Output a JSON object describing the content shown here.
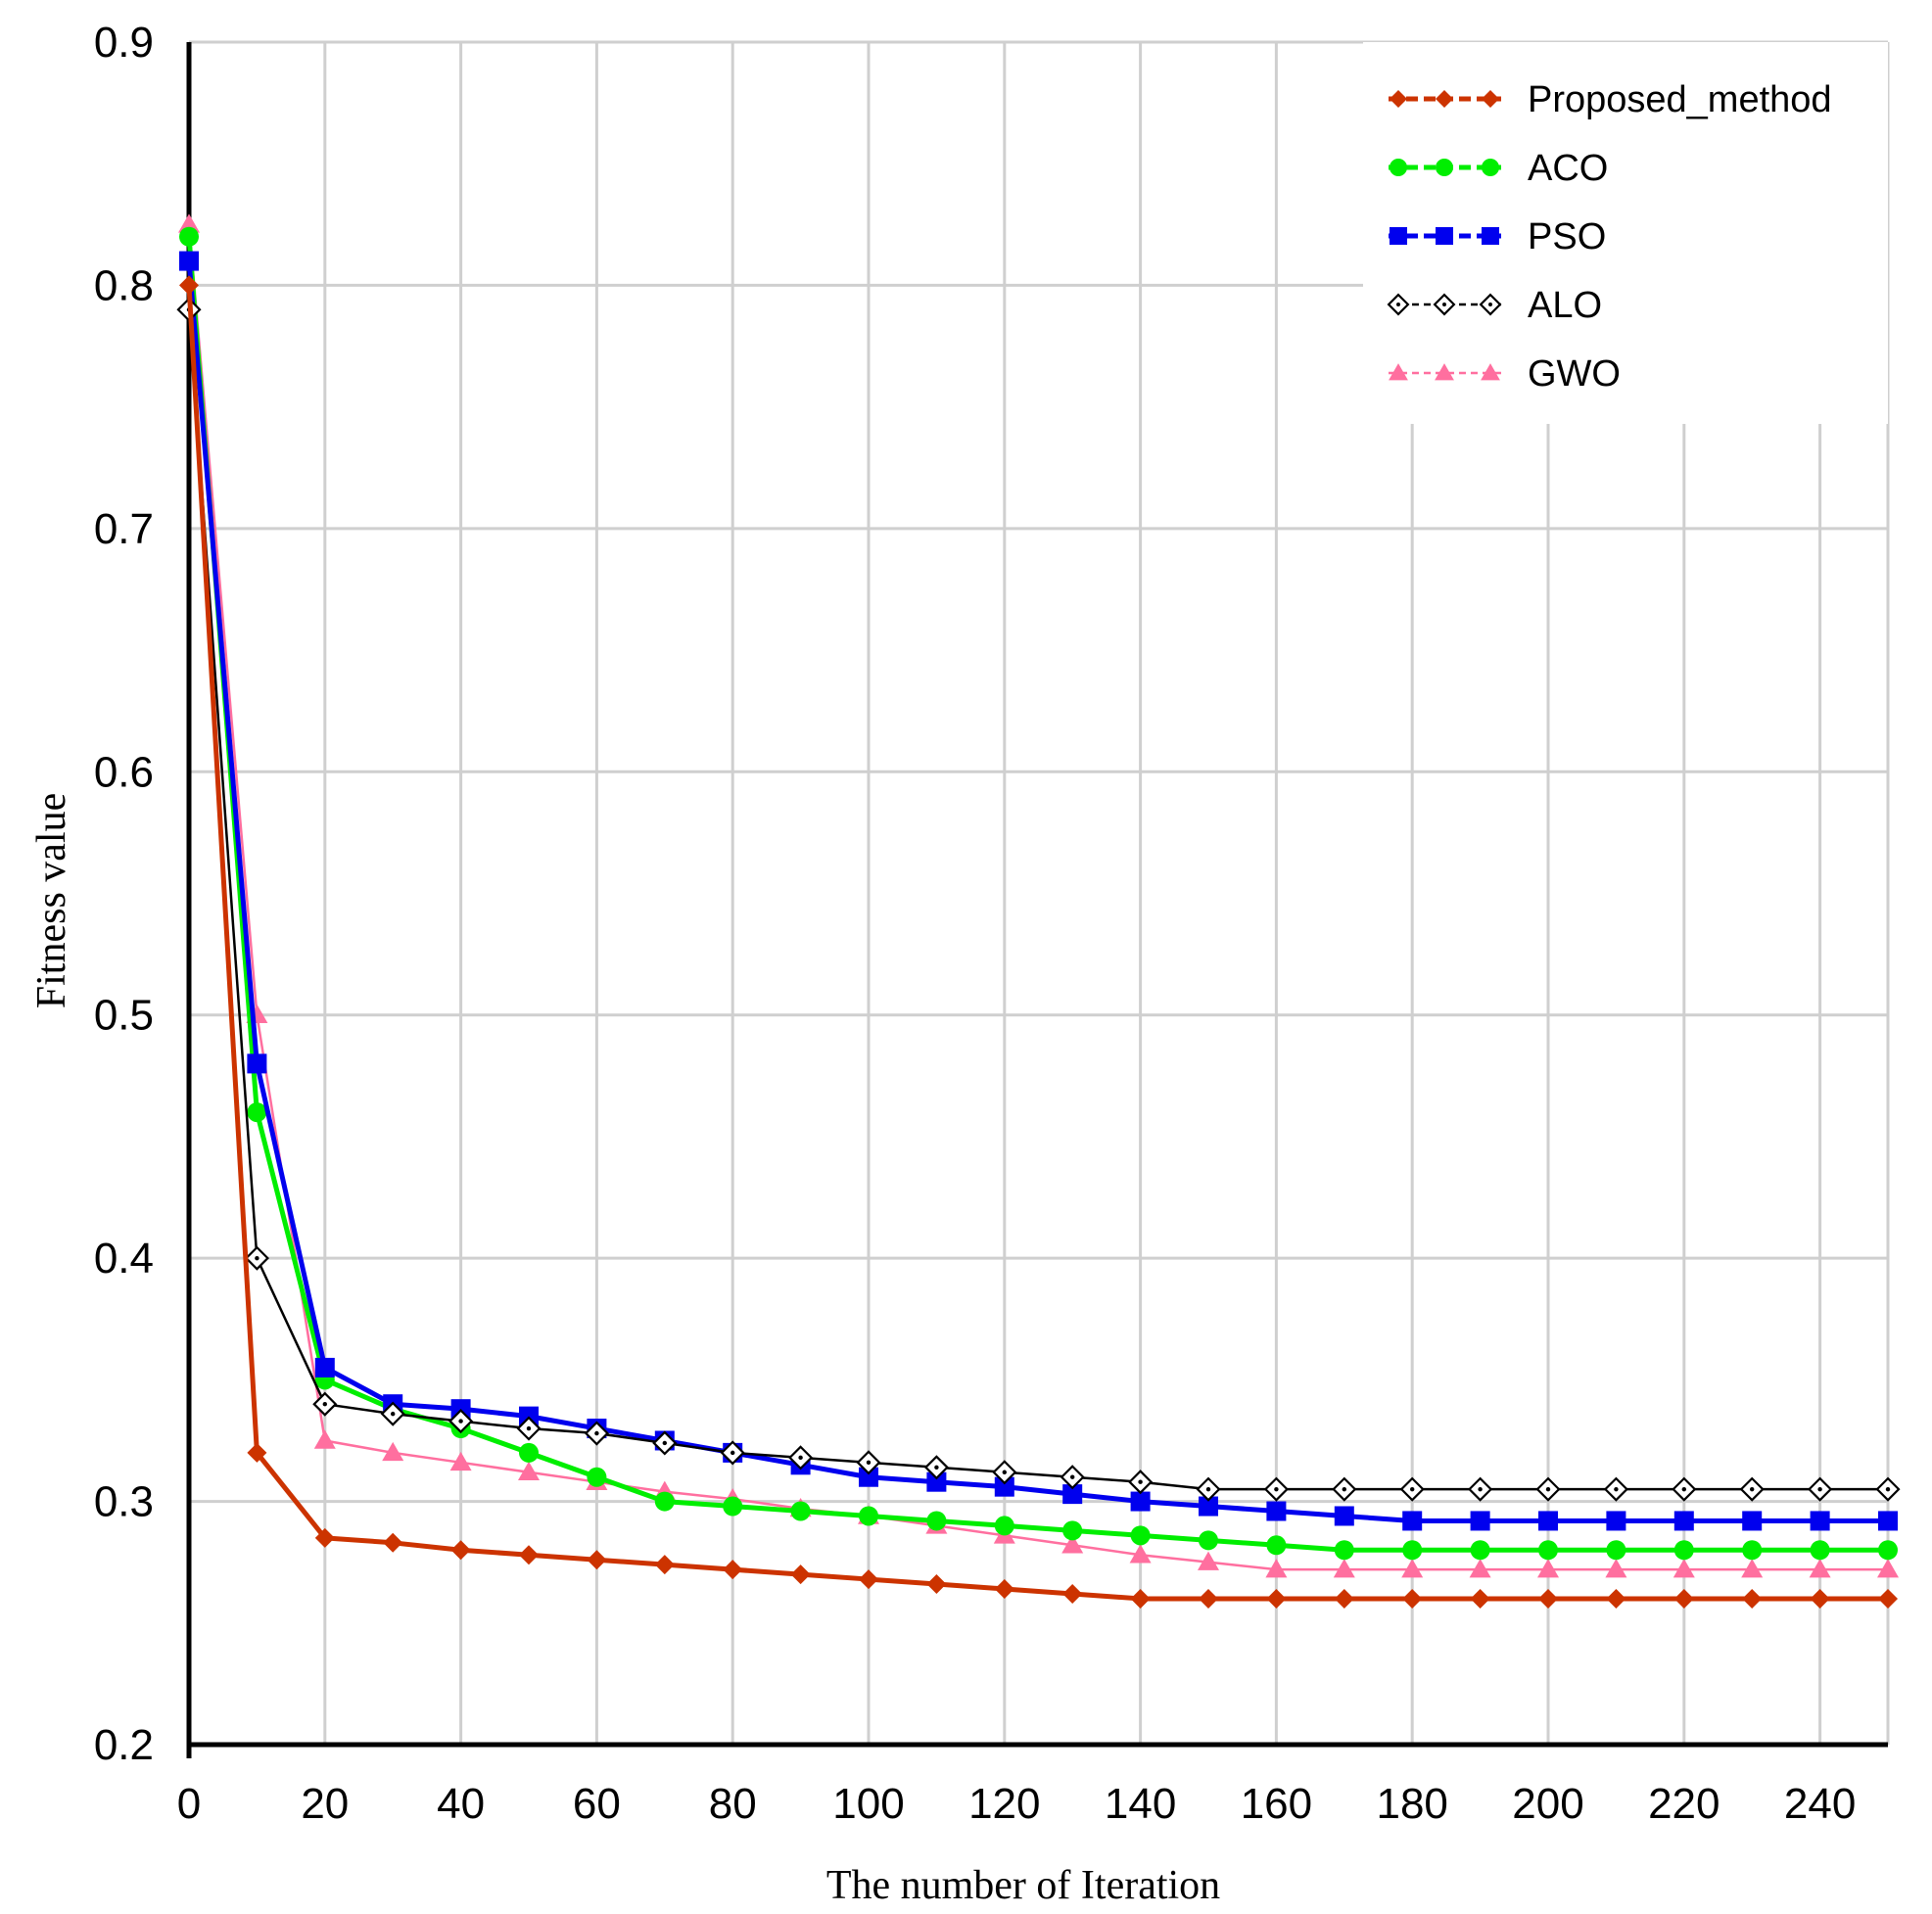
{
  "chart_data": {
    "type": "line",
    "title": "",
    "xlabel": "The number of Iteration",
    "ylabel": "Fitness value",
    "xlim": [
      0,
      250
    ],
    "ylim": [
      0.2,
      0.9
    ],
    "xticks": [
      0,
      20,
      40,
      60,
      80,
      100,
      120,
      140,
      160,
      180,
      200,
      220,
      240
    ],
    "xtick_labels": [
      "0",
      "20",
      "40",
      "60",
      "80",
      "100",
      "120",
      "140",
      "160",
      "180",
      "200",
      "220",
      "240"
    ],
    "yticks": [
      0.2,
      0.3,
      0.4,
      0.5,
      0.6,
      0.7,
      0.8,
      0.9
    ],
    "ytick_labels": [
      "0.2",
      "0.3",
      "0.4",
      "0.5",
      "0.6",
      "0.7",
      "0.8",
      "0.9"
    ],
    "grid": true,
    "legend_position": "top-right",
    "x": [
      0,
      10,
      20,
      30,
      40,
      50,
      60,
      70,
      80,
      90,
      100,
      110,
      120,
      130,
      140,
      150,
      160,
      170,
      180,
      190,
      200,
      210,
      220,
      230,
      240,
      250
    ],
    "series": [
      {
        "name": "Proposed_method",
        "color": "#cc3300",
        "marker": "diamond",
        "dash": "dashed",
        "values": [
          0.8,
          0.32,
          0.285,
          0.283,
          0.28,
          0.278,
          0.276,
          0.274,
          0.272,
          0.27,
          0.268,
          0.266,
          0.264,
          0.262,
          0.26,
          0.26,
          0.26,
          0.26,
          0.26,
          0.26,
          0.26,
          0.26,
          0.26,
          0.26,
          0.26,
          0.26
        ]
      },
      {
        "name": "ACO",
        "color": "#00ee00",
        "marker": "circle",
        "dash": "dashed",
        "values": [
          0.82,
          0.46,
          0.35,
          0.338,
          0.33,
          0.32,
          0.31,
          0.3,
          0.298,
          0.296,
          0.294,
          0.292,
          0.29,
          0.288,
          0.286,
          0.284,
          0.282,
          0.28,
          0.28,
          0.28,
          0.28,
          0.28,
          0.28,
          0.28,
          0.28,
          0.28
        ]
      },
      {
        "name": "PSO",
        "color": "#0000ee",
        "marker": "square",
        "dash": "dashed",
        "values": [
          0.81,
          0.48,
          0.355,
          0.34,
          0.338,
          0.335,
          0.33,
          0.325,
          0.32,
          0.315,
          0.31,
          0.308,
          0.306,
          0.303,
          0.3,
          0.298,
          0.296,
          0.294,
          0.292,
          0.292,
          0.292,
          0.292,
          0.292,
          0.292,
          0.292,
          0.292
        ]
      },
      {
        "name": "ALO",
        "color": "#000000",
        "marker": "open-diamond",
        "dash": "solid",
        "values": [
          0.79,
          0.4,
          0.34,
          0.336,
          0.333,
          0.33,
          0.328,
          0.324,
          0.32,
          0.318,
          0.316,
          0.314,
          0.312,
          0.31,
          0.308,
          0.305,
          0.305,
          0.305,
          0.305,
          0.305,
          0.305,
          0.305,
          0.305,
          0.305,
          0.305,
          0.305
        ]
      },
      {
        "name": "GWO",
        "color": "#ff6f9f",
        "marker": "triangle",
        "dash": "solid",
        "values": [
          0.825,
          0.5,
          0.325,
          0.32,
          0.316,
          0.312,
          0.308,
          0.304,
          0.301,
          0.297,
          0.294,
          0.29,
          0.286,
          0.282,
          0.278,
          0.275,
          0.272,
          0.272,
          0.272,
          0.272,
          0.272,
          0.272,
          0.272,
          0.272,
          0.272,
          0.272
        ]
      }
    ]
  }
}
